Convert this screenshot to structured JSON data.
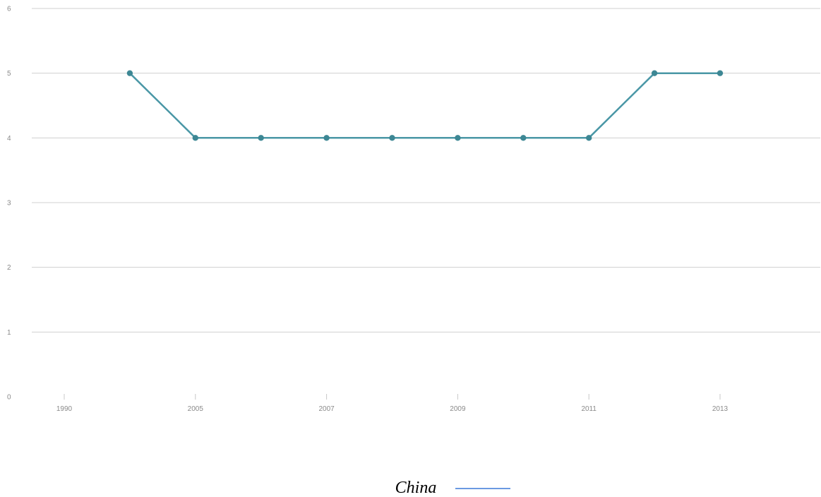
{
  "chart_data": {
    "type": "line",
    "title": "",
    "xlabel": "",
    "ylabel": "",
    "ylim": [
      0,
      6
    ],
    "y_ticks": [
      "0",
      "1",
      "2",
      "3",
      "4",
      "5",
      "6"
    ],
    "x_tick_labels": [
      "1990",
      "2005",
      "2007",
      "2009",
      "2011",
      "2013"
    ],
    "x_categories": [
      "1990",
      "2004",
      "2005",
      "2006",
      "2007",
      "2008",
      "2009",
      "2010",
      "2011",
      "2012",
      "2013",
      "2014"
    ],
    "grid": true,
    "legend_position": "bottom-center",
    "series": [
      {
        "name": "China",
        "x": [
          "2004",
          "2005",
          "2006",
          "2007",
          "2008",
          "2009",
          "2010",
          "2011",
          "2012",
          "2013"
        ],
        "values": [
          5,
          4,
          4,
          4,
          4,
          4,
          4,
          4,
          5,
          5
        ]
      }
    ],
    "colors": {
      "series_line": "#4a97a6",
      "series_point": "#3d8794",
      "legend_swatch": "#3a78d8"
    }
  }
}
